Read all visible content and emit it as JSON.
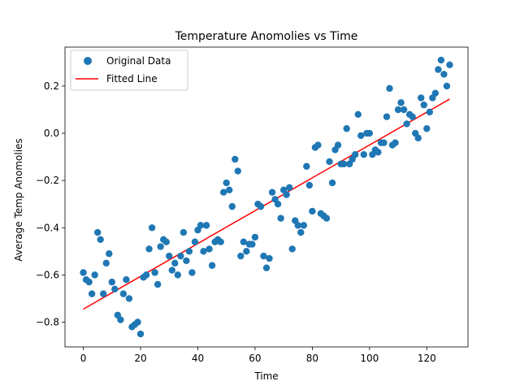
{
  "chart_data": {
    "type": "scatter",
    "title": "Temperature Anomolies vs Time",
    "xlabel": "Time",
    "ylabel": "Average Temp Anomolies",
    "xlim": [
      -6.4,
      134.4
    ],
    "ylim": [
      -0.905,
      0.365
    ],
    "xticks": [
      0,
      20,
      40,
      60,
      80,
      100,
      120
    ],
    "yticks": [
      -0.8,
      -0.6,
      -0.4,
      -0.2,
      0.0,
      0.2
    ],
    "ytick_labels": [
      "−0.8",
      "−0.6",
      "−0.4",
      "−0.2",
      "0.0",
      "0.2"
    ],
    "grid": false,
    "legend_position": "top-left",
    "colors": {
      "points": "#1f77b4",
      "line": "#ff0000"
    },
    "series": [
      {
        "name": "Original Data",
        "kind": "scatter",
        "points": [
          [
            0,
            -0.59
          ],
          [
            1,
            -0.62
          ],
          [
            2,
            -0.63
          ],
          [
            3,
            -0.68
          ],
          [
            4,
            -0.6
          ],
          [
            5,
            -0.42
          ],
          [
            6,
            -0.45
          ],
          [
            7,
            -0.68
          ],
          [
            8,
            -0.55
          ],
          [
            9,
            -0.51
          ],
          [
            10,
            -0.63
          ],
          [
            11,
            -0.66
          ],
          [
            12,
            -0.77
          ],
          [
            13,
            -0.79
          ],
          [
            14,
            -0.68
          ],
          [
            15,
            -0.62
          ],
          [
            16,
            -0.7
          ],
          [
            17,
            -0.82
          ],
          [
            18,
            -0.81
          ],
          [
            19,
            -0.8
          ],
          [
            20,
            -0.85
          ],
          [
            21,
            -0.61
          ],
          [
            22,
            -0.6
          ],
          [
            23,
            -0.49
          ],
          [
            24,
            -0.4
          ],
          [
            25,
            -0.59
          ],
          [
            26,
            -0.64
          ],
          [
            27,
            -0.48
          ],
          [
            28,
            -0.45
          ],
          [
            29,
            -0.46
          ],
          [
            30,
            -0.52
          ],
          [
            31,
            -0.58
          ],
          [
            32,
            -0.55
          ],
          [
            33,
            -0.6
          ],
          [
            34,
            -0.52
          ],
          [
            35,
            -0.42
          ],
          [
            36,
            -0.54
          ],
          [
            37,
            -0.5
          ],
          [
            38,
            -0.59
          ],
          [
            39,
            -0.46
          ],
          [
            40,
            -0.41
          ],
          [
            41,
            -0.39
          ],
          [
            42,
            -0.5
          ],
          [
            43,
            -0.39
          ],
          [
            44,
            -0.49
          ],
          [
            45,
            -0.56
          ],
          [
            46,
            -0.46
          ],
          [
            47,
            -0.45
          ],
          [
            48,
            -0.46
          ],
          [
            49,
            -0.25
          ],
          [
            50,
            -0.21
          ],
          [
            51,
            -0.24
          ],
          [
            52,
            -0.31
          ],
          [
            53,
            -0.11
          ],
          [
            54,
            -0.16
          ],
          [
            55,
            -0.52
          ],
          [
            56,
            -0.46
          ],
          [
            57,
            -0.5
          ],
          [
            58,
            -0.47
          ],
          [
            59,
            -0.47
          ],
          [
            60,
            -0.44
          ],
          [
            61,
            -0.3
          ],
          [
            62,
            -0.31
          ],
          [
            63,
            -0.52
          ],
          [
            64,
            -0.57
          ],
          [
            65,
            -0.53
          ],
          [
            66,
            -0.25
          ],
          [
            67,
            -0.28
          ],
          [
            68,
            -0.3
          ],
          [
            69,
            -0.36
          ],
          [
            70,
            -0.24
          ],
          [
            71,
            -0.26
          ],
          [
            72,
            -0.23
          ],
          [
            73,
            -0.49
          ],
          [
            74,
            -0.37
          ],
          [
            75,
            -0.39
          ],
          [
            76,
            -0.42
          ],
          [
            77,
            -0.39
          ],
          [
            78,
            -0.14
          ],
          [
            79,
            -0.22
          ],
          [
            80,
            -0.33
          ],
          [
            81,
            -0.06
          ],
          [
            82,
            -0.05
          ],
          [
            83,
            -0.34
          ],
          [
            84,
            -0.35
          ],
          [
            85,
            -0.36
          ],
          [
            86,
            -0.12
          ],
          [
            87,
            -0.21
          ],
          [
            88,
            -0.07
          ],
          [
            89,
            -0.05
          ],
          [
            90,
            -0.13
          ],
          [
            91,
            -0.13
          ],
          [
            92,
            0.02
          ],
          [
            93,
            -0.13
          ],
          [
            94,
            -0.11
          ],
          [
            95,
            -0.09
          ],
          [
            96,
            0.08
          ],
          [
            97,
            -0.01
          ],
          [
            98,
            -0.09
          ],
          [
            99,
            0.0
          ],
          [
            100,
            0.0
          ],
          [
            101,
            -0.09
          ],
          [
            102,
            -0.07
          ],
          [
            103,
            -0.08
          ],
          [
            104,
            -0.04
          ],
          [
            105,
            -0.04
          ],
          [
            106,
            0.07
          ],
          [
            107,
            0.19
          ],
          [
            108,
            -0.05
          ],
          [
            109,
            -0.04
          ],
          [
            110,
            0.1
          ],
          [
            111,
            0.13
          ],
          [
            112,
            0.1
          ],
          [
            113,
            0.04
          ],
          [
            114,
            0.08
          ],
          [
            115,
            0.07
          ],
          [
            116,
            0.0
          ],
          [
            117,
            -0.02
          ],
          [
            118,
            0.15
          ],
          [
            119,
            0.12
          ],
          [
            120,
            0.02
          ],
          [
            121,
            0.09
          ],
          [
            122,
            0.15
          ],
          [
            123,
            0.17
          ],
          [
            124,
            0.27
          ],
          [
            125,
            0.31
          ],
          [
            126,
            0.25
          ],
          [
            127,
            0.2
          ],
          [
            128,
            0.29
          ]
        ]
      },
      {
        "name": "Fitted Line",
        "kind": "line",
        "points": [
          [
            0,
            -0.745
          ],
          [
            128,
            0.145
          ]
        ]
      }
    ]
  }
}
